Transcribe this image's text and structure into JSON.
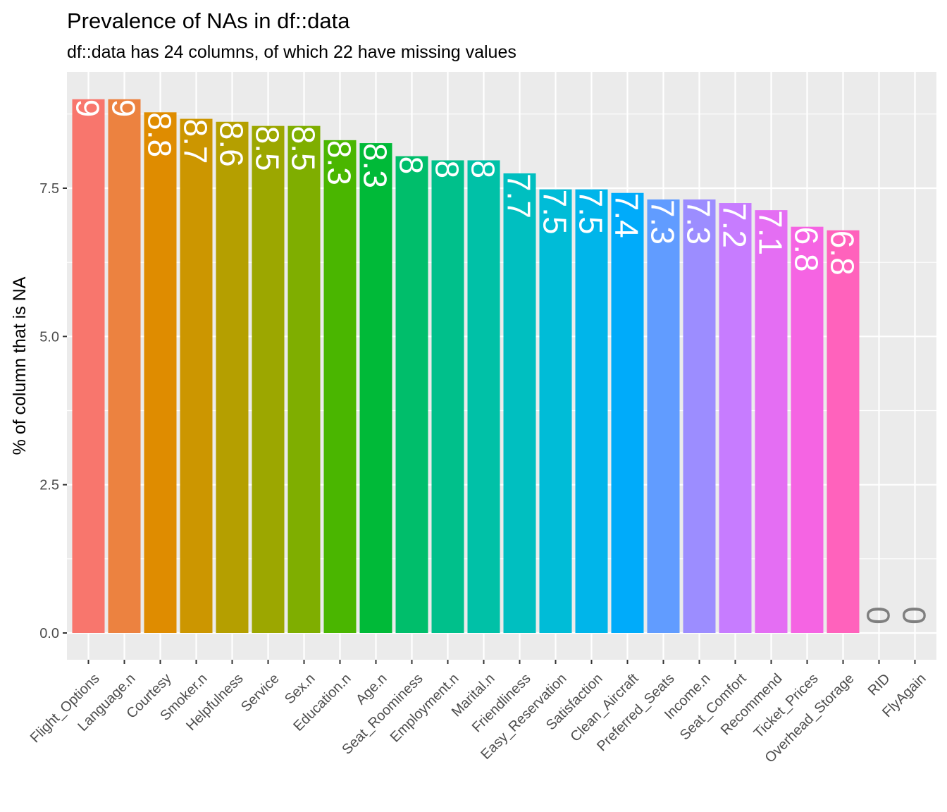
{
  "chart_data": {
    "type": "bar",
    "title": "Prevalence of NAs in df::data",
    "subtitle": "df::data has 24 columns, of which 22 have missing values",
    "ylabel": "% of column that is NA",
    "xlabel": "",
    "ylim": [
      -1.05,
      9.45
    ],
    "yticks": [
      "0.0",
      "2.5",
      "5.0",
      "7.5"
    ],
    "ytick_values": [
      0,
      2.5,
      5,
      7.5
    ],
    "grid": true,
    "legend": "none",
    "categories": [
      "Flight_Options",
      "Language.n",
      "Courtesy",
      "Smoker.n",
      "Helpfulness",
      "Service",
      "Sex.n",
      "Education.n",
      "Age.n",
      "Seat_Roominess",
      "Employment.n",
      "Marital.n",
      "Friendliness",
      "Easy_Reservation",
      "Satisfaction",
      "Clean_Aircraft",
      "Preferred_Seats",
      "Income.n",
      "Seat_Comfort",
      "Recommend",
      "Ticket_Prices",
      "Overhead_Storage",
      "RID",
      "FlyAgain"
    ],
    "values": [
      9.0,
      9.0,
      8.78,
      8.67,
      8.62,
      8.55,
      8.55,
      8.31,
      8.26,
      8.04,
      7.97,
      7.97,
      7.75,
      7.48,
      7.48,
      7.42,
      7.31,
      7.31,
      7.25,
      7.13,
      6.85,
      6.79,
      0,
      0
    ],
    "labels": [
      "9",
      "9",
      "8.8",
      "8.7",
      "8.6",
      "8.5",
      "8.5",
      "8.3",
      "8.3",
      "8",
      "8",
      "8",
      "7.7",
      "7.5",
      "7.5",
      "7.4",
      "7.3",
      "7.3",
      "7.2",
      "7.1",
      "6.8",
      "6.8",
      "0",
      "0"
    ],
    "colors": [
      "#F8766D",
      "#EA8331",
      "#D89000",
      "#C09B00",
      "#A3A500",
      "#7CAE00",
      "#39B600",
      "#00BB4E",
      "#00BF7D",
      "#00C1A3",
      "#00BFC4",
      "#00BAE0",
      "#00B0F6",
      "#35A2FF",
      "#9590FF",
      "#C77CFF",
      "#E76BF3",
      "#FA62DB",
      "#FF62BC",
      "#FF6C91",
      "#F8766D",
      "#EA8331",
      "#D89000",
      "#C09B00"
    ],
    "bar_colors": [
      "#F8766D",
      "#EC8240",
      "#DF8C00",
      "#CC9600",
      "#B59F00",
      "#9CA700",
      "#7FAE00",
      "#4AB600",
      "#00BA38",
      "#00BE6B",
      "#00C08B",
      "#00C1A7",
      "#00BFC0",
      "#00BCD7",
      "#00B5EA",
      "#00ABFA",
      "#619CFF",
      "#9C8DFF",
      "#C77CFF",
      "#E46EF3",
      "#F564E3",
      "#FF62BC"
    ],
    "label_color": "#FFFFFF",
    "zero_label_color": "#7F7F7F",
    "panel_bg": "#EBEBEB",
    "grid_color": "#FFFFFF"
  }
}
